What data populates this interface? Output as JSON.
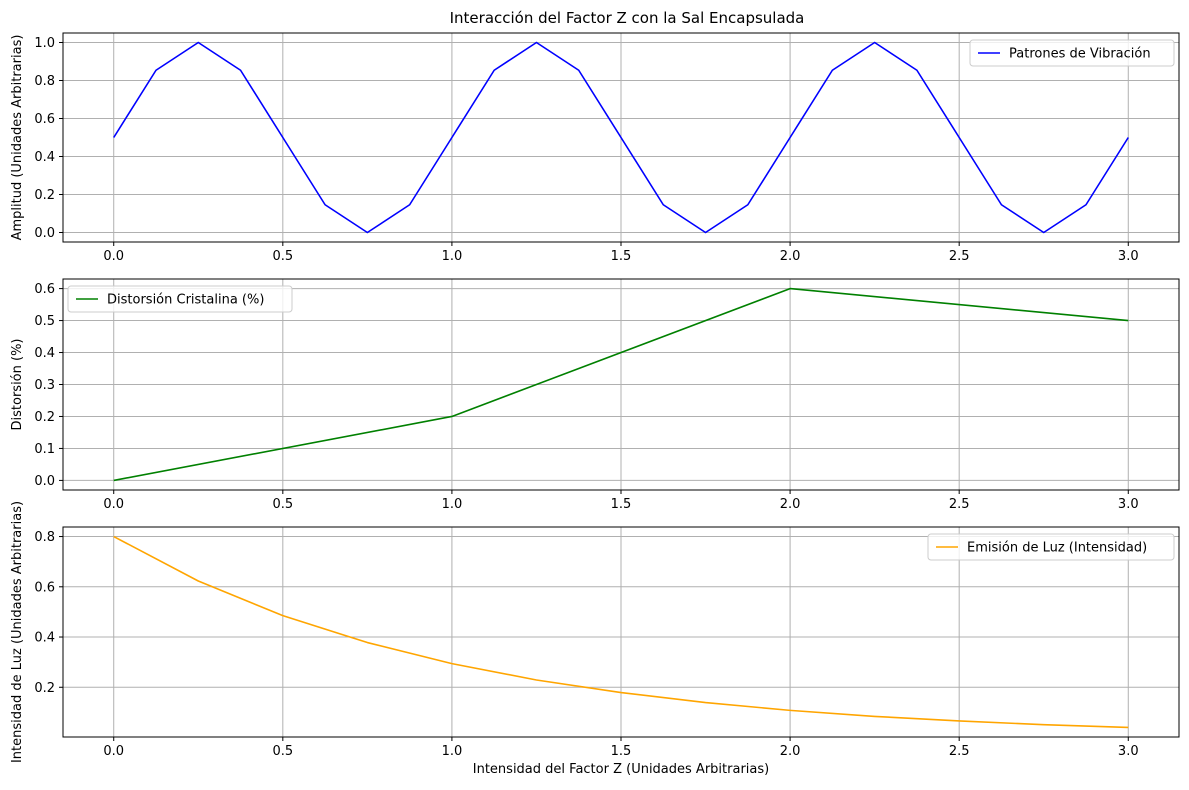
{
  "title": "Interacción del Factor Z con la Sal Encapsulada",
  "colors": {
    "series1": "#0000ff",
    "series2": "#008000",
    "series3": "#ffa500",
    "grid": "#b0b0b0"
  },
  "chart_data": [
    {
      "type": "line",
      "title": "Interacción del Factor Z con la Sal Encapsulada",
      "xlabel": "",
      "ylabel": "Amplitud (Unidades Arbitrarias)",
      "xlim": [
        -0.15,
        3.15
      ],
      "ylim": [
        -0.05,
        1.05
      ],
      "xticks": [
        0.0,
        0.5,
        1.0,
        1.5,
        2.0,
        2.5,
        3.0
      ],
      "xtick_labels": [
        "0.0",
        "0.5",
        "1.0",
        "1.5",
        "2.0",
        "2.5",
        "3.0"
      ],
      "yticks": [
        0.0,
        0.2,
        0.4,
        0.6,
        0.8,
        1.0
      ],
      "ytick_labels": [
        "0.0",
        "0.2",
        "0.4",
        "0.6",
        "0.8",
        "1.0"
      ],
      "grid": true,
      "legend": "top-right",
      "series": [
        {
          "name": "Patrones de Vibración",
          "color": "#0000ff",
          "x": [
            0.0,
            0.125,
            0.25,
            0.375,
            0.5,
            0.625,
            0.75,
            0.875,
            1.0,
            1.125,
            1.25,
            1.375,
            1.5,
            1.625,
            1.75,
            1.875,
            2.0,
            2.125,
            2.25,
            2.375,
            2.5,
            2.625,
            2.75,
            2.875,
            3.0
          ],
          "y": [
            0.5,
            0.854,
            1.0,
            0.854,
            0.5,
            0.146,
            0.0,
            0.146,
            0.5,
            0.854,
            1.0,
            0.854,
            0.5,
            0.146,
            0.0,
            0.146,
            0.5,
            0.854,
            1.0,
            0.854,
            0.5,
            0.146,
            0.0,
            0.146,
            0.5
          ]
        }
      ]
    },
    {
      "type": "line",
      "title": "",
      "xlabel": "",
      "ylabel": "Distorsión (%)",
      "xlim": [
        -0.15,
        3.15
      ],
      "ylim": [
        -0.03,
        0.63
      ],
      "xticks": [
        0.0,
        0.5,
        1.0,
        1.5,
        2.0,
        2.5,
        3.0
      ],
      "xtick_labels": [
        "0.0",
        "0.5",
        "1.0",
        "1.5",
        "2.0",
        "2.5",
        "3.0"
      ],
      "yticks": [
        0.0,
        0.1,
        0.2,
        0.3,
        0.4,
        0.5,
        0.6
      ],
      "ytick_labels": [
        "0.0",
        "0.1",
        "0.2",
        "0.3",
        "0.4",
        "0.5",
        "0.6"
      ],
      "grid": true,
      "legend": "top-left",
      "series": [
        {
          "name": "Distorsión Cristalina (%)",
          "color": "#008000",
          "x": [
            0,
            1,
            2,
            3
          ],
          "y": [
            0.0,
            0.2,
            0.6,
            0.5
          ]
        }
      ]
    },
    {
      "type": "line",
      "title": "",
      "xlabel": "Intensidad del Factor Z (Unidades Arbitrarias)",
      "ylabel": "Intensidad de Luz (Unidades Arbitrarias)",
      "xlim": [
        -0.15,
        3.15
      ],
      "ylim": [
        0.002,
        0.838
      ],
      "xticks": [
        0.0,
        0.5,
        1.0,
        1.5,
        2.0,
        2.5,
        3.0
      ],
      "xtick_labels": [
        "0.0",
        "0.5",
        "1.0",
        "1.5",
        "2.0",
        "2.5",
        "3.0"
      ],
      "yticks": [
        0.2,
        0.4,
        0.6,
        0.8
      ],
      "ytick_labels": [
        "0.2",
        "0.4",
        "0.6",
        "0.8"
      ],
      "grid": true,
      "legend": "top-right",
      "series": [
        {
          "name": "Emisión de Luz (Intensidad)",
          "color": "#ffa500",
          "x": [
            0.0,
            0.25,
            0.5,
            0.75,
            1.0,
            1.25,
            1.5,
            1.75,
            2.0,
            2.25,
            2.5,
            2.75,
            3.0
          ],
          "y": [
            0.8,
            0.623,
            0.485,
            0.378,
            0.294,
            0.229,
            0.179,
            0.139,
            0.108,
            0.084,
            0.066,
            0.051,
            0.04
          ]
        }
      ]
    }
  ]
}
